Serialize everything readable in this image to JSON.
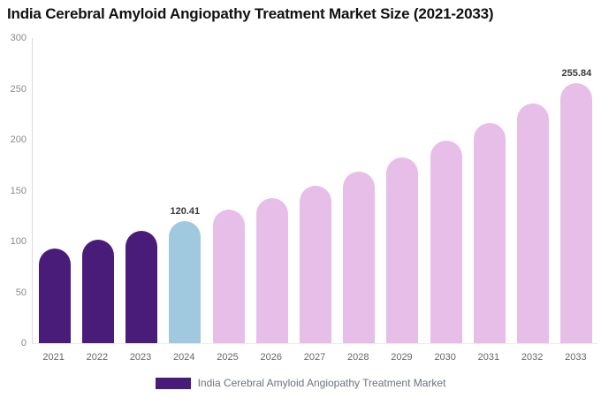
{
  "header": {
    "title": "India Cerebral Amyloid Angiopathy Treatment Market Size (2021-2033)"
  },
  "chart_data": {
    "type": "bar",
    "title": "India Cerebral Amyloid Angiopathy Treatment Market Size (2021-2033)",
    "categories": [
      "2021",
      "2022",
      "2023",
      "2024",
      "2025",
      "2026",
      "2027",
      "2028",
      "2029",
      "2030",
      "2031",
      "2032",
      "2033"
    ],
    "values": [
      93.0,
      101.35,
      110.47,
      120.41,
      130.93,
      142.36,
      154.8,
      168.32,
      183.02,
      199.01,
      216.39,
      235.29,
      255.84
    ],
    "value_labels": {
      "2024": "120.41",
      "2033": "255.84"
    },
    "bar_colors": [
      "#4A1C7A",
      "#4A1C7A",
      "#4A1C7A",
      "#A0C9E0",
      "#E7BEE8",
      "#E7BEE8",
      "#E7BEE8",
      "#E7BEE8",
      "#E7BEE8",
      "#E7BEE8",
      "#E7BEE8",
      "#E7BEE8",
      "#E7BEE8"
    ],
    "xlabel": "",
    "ylabel": "",
    "ylim": [
      0,
      300
    ],
    "yticks": [
      0,
      50,
      100,
      150,
      200,
      250,
      300
    ],
    "grid": false,
    "legend": {
      "position": "bottom",
      "items": [
        {
          "label": "India Cerebral Amyloid Angiopathy Treatment Market",
          "color": "#4A1C7A"
        }
      ]
    }
  },
  "colors": {
    "background": "#FFFFFF",
    "title": "#111111",
    "bar_past": "#4A1C7A",
    "bar_current": "#A0C9E0",
    "bar_forecast": "#E7BEE8",
    "y_axis_label": "#8A8A8A",
    "x_axis_label": "#666666",
    "value_label": "#3A3A3A",
    "legend_text": "#6B7280",
    "axis_line": "#DBDBDB"
  }
}
